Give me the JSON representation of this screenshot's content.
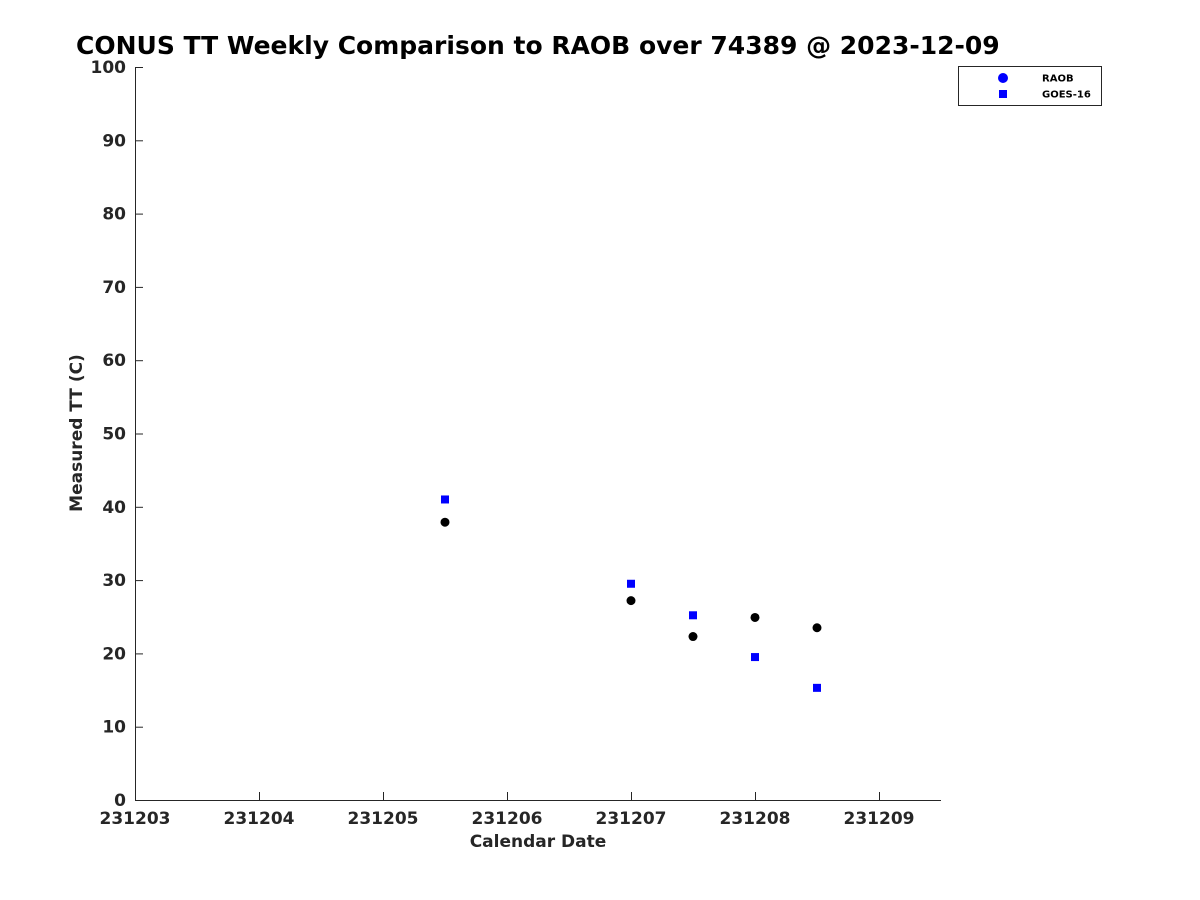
{
  "chart_data": {
    "type": "scatter",
    "title": "CONUS TT Weekly Comparison to RAOB over 74389 @ 2023-12-09",
    "xlabel": "Calendar Date",
    "ylabel": "Measured TT (C)",
    "xlim": [
      "2023-12-03",
      "2023-12-09T12:00"
    ],
    "ylim": [
      0,
      100
    ],
    "x_ticks": [
      "231203",
      "231204",
      "231205",
      "231206",
      "231207",
      "231208",
      "231209"
    ],
    "y_ticks": [
      "0",
      "10",
      "20",
      "30",
      "40",
      "50",
      "60",
      "70",
      "80",
      "90",
      "100"
    ],
    "grid": false,
    "legend": {
      "position": "top-right",
      "entries": [
        "RAOB",
        "GOES-16"
      ]
    },
    "series": [
      {
        "name": "RAOB",
        "marker": "circle",
        "color": "#000000",
        "legend_color": "#0000ff",
        "x": [
          "2023-12-05T12:00",
          "2023-12-07T00:00",
          "2023-12-07T12:00",
          "2023-12-08T00:00",
          "2023-12-08T12:00"
        ],
        "y": [
          37.9,
          27.2,
          22.3,
          24.9,
          23.5
        ]
      },
      {
        "name": "GOES-16",
        "marker": "square",
        "color": "#0000ff",
        "legend_color": "#0000ff",
        "x": [
          "2023-12-05T12:00",
          "2023-12-07T00:00",
          "2023-12-07T12:00",
          "2023-12-08T00:00",
          "2023-12-08T12:00"
        ],
        "y": [
          41.0,
          29.5,
          25.2,
          19.5,
          15.3
        ]
      }
    ]
  }
}
